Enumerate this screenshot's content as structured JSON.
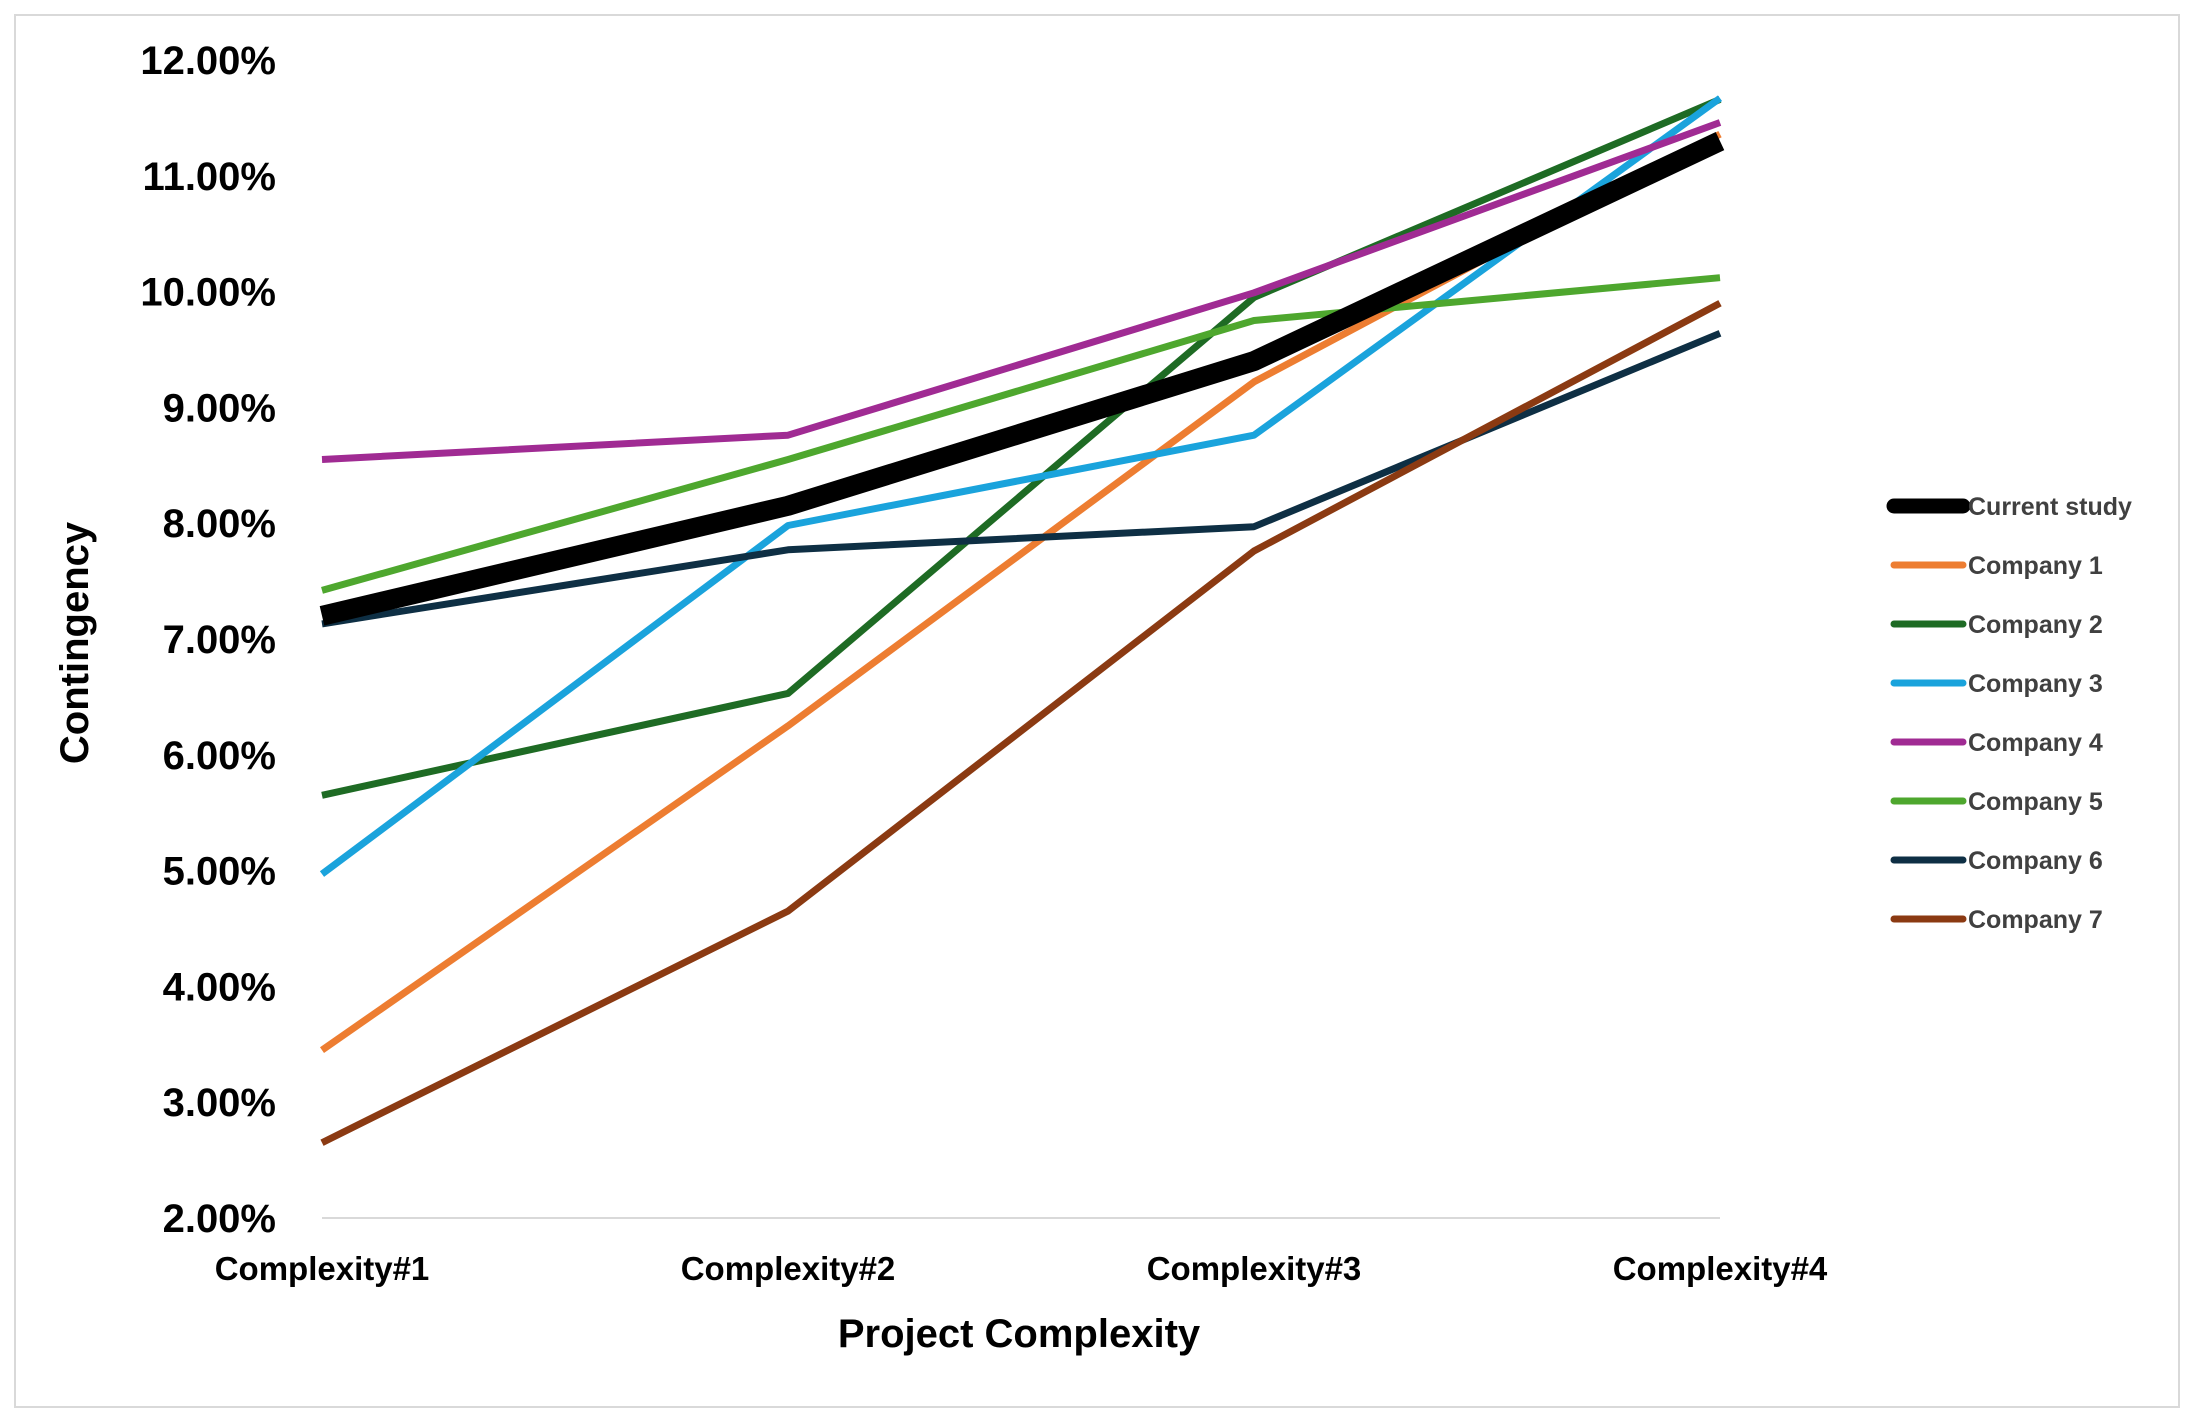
{
  "chart_data": {
    "type": "line",
    "title": "",
    "xlabel": "Project Complexity",
    "ylabel": "Contingency",
    "categories": [
      "Complexity#1",
      "Complexity#2",
      "Complexity#3",
      "Complexity#4"
    ],
    "ylim": [
      0.02,
      0.12
    ],
    "yticks": [
      0.02,
      0.03,
      0.04,
      0.05,
      0.06,
      0.07,
      0.08,
      0.09,
      0.1,
      0.11,
      0.12
    ],
    "ytick_labels": [
      "2.00%",
      "3.00%",
      "4.00%",
      "5.00%",
      "6.00%",
      "7.00%",
      "8.00%",
      "9.00%",
      "10.00%",
      "11.00%",
      "12.00%"
    ],
    "legend_position": "right",
    "grid": false,
    "series": [
      {
        "name": "Current study",
        "color": "#000000",
        "emphasis": true,
        "values": [
          0.072,
          0.0815,
          0.094,
          0.113
        ]
      },
      {
        "name": "Company 1",
        "color": "#ED7D31",
        "values": [
          0.0345,
          0.0625,
          0.0922,
          0.1136
        ]
      },
      {
        "name": "Company 2",
        "color": "#1E6B24",
        "values": [
          0.0565,
          0.0653,
          0.0995,
          0.1166
        ]
      },
      {
        "name": "Company 3",
        "color": "#1AA3DC",
        "values": [
          0.0497,
          0.0798,
          0.0876,
          0.1167
        ]
      },
      {
        "name": "Company 4",
        "color": "#A02B93",
        "values": [
          0.0855,
          0.0876,
          0.0999,
          0.1146
        ]
      },
      {
        "name": "Company 5",
        "color": "#4EA72E",
        "values": [
          0.0742,
          0.0855,
          0.0975,
          0.1012
        ]
      },
      {
        "name": "Company 6",
        "color": "#0E2F44",
        "values": [
          0.0713,
          0.0777,
          0.0797,
          0.0964
        ]
      },
      {
        "name": "Company 7",
        "color": "#8B3A12",
        "values": [
          0.0265,
          0.0465,
          0.0776,
          0.099
        ]
      }
    ]
  }
}
